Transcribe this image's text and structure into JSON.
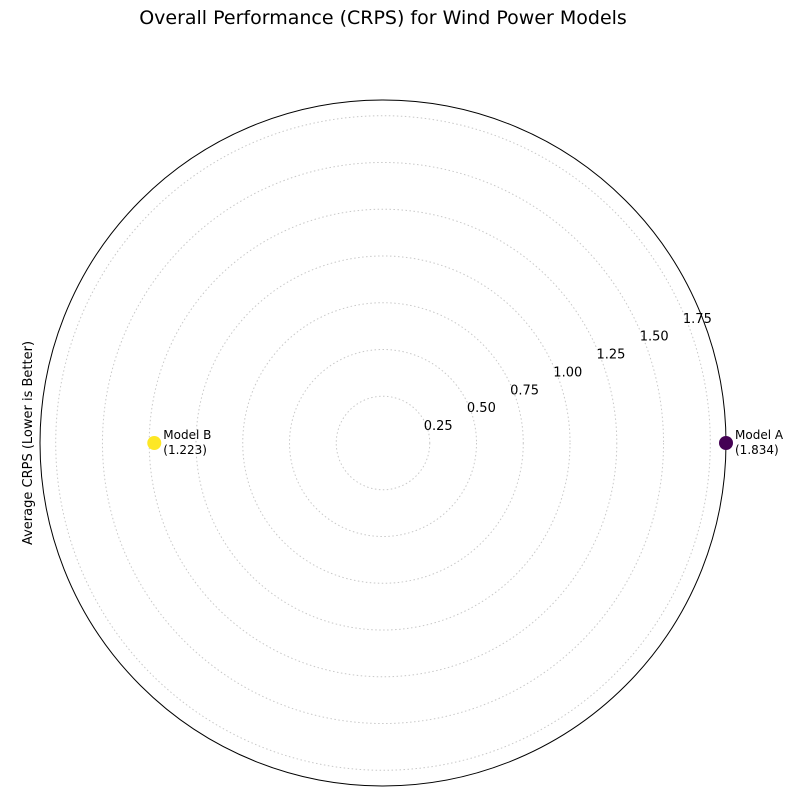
{
  "chart_data": {
    "type": "scatter",
    "projection": "polar",
    "title": "Overall Performance (CRPS) for Wind Power Models",
    "ylabel": "Average CRPS (Lower is Better)",
    "rlim": [
      0,
      1.834
    ],
    "rticks": [
      0.25,
      0.5,
      0.75,
      1.0,
      1.25,
      1.5,
      1.75
    ],
    "rtick_labels": [
      "0.25",
      "0.50",
      "0.75",
      "1.00",
      "1.25",
      "1.50",
      "1.75"
    ],
    "grid": true,
    "points": [
      {
        "name": "Model A",
        "value": 1.834,
        "angle_deg": 0,
        "color": "#440154",
        "label": "Model A",
        "value_label": "(1.834)"
      },
      {
        "name": "Model B",
        "value": 1.223,
        "angle_deg": 180,
        "color": "#fde725",
        "label": "Model B",
        "value_label": "(1.223)"
      }
    ]
  }
}
